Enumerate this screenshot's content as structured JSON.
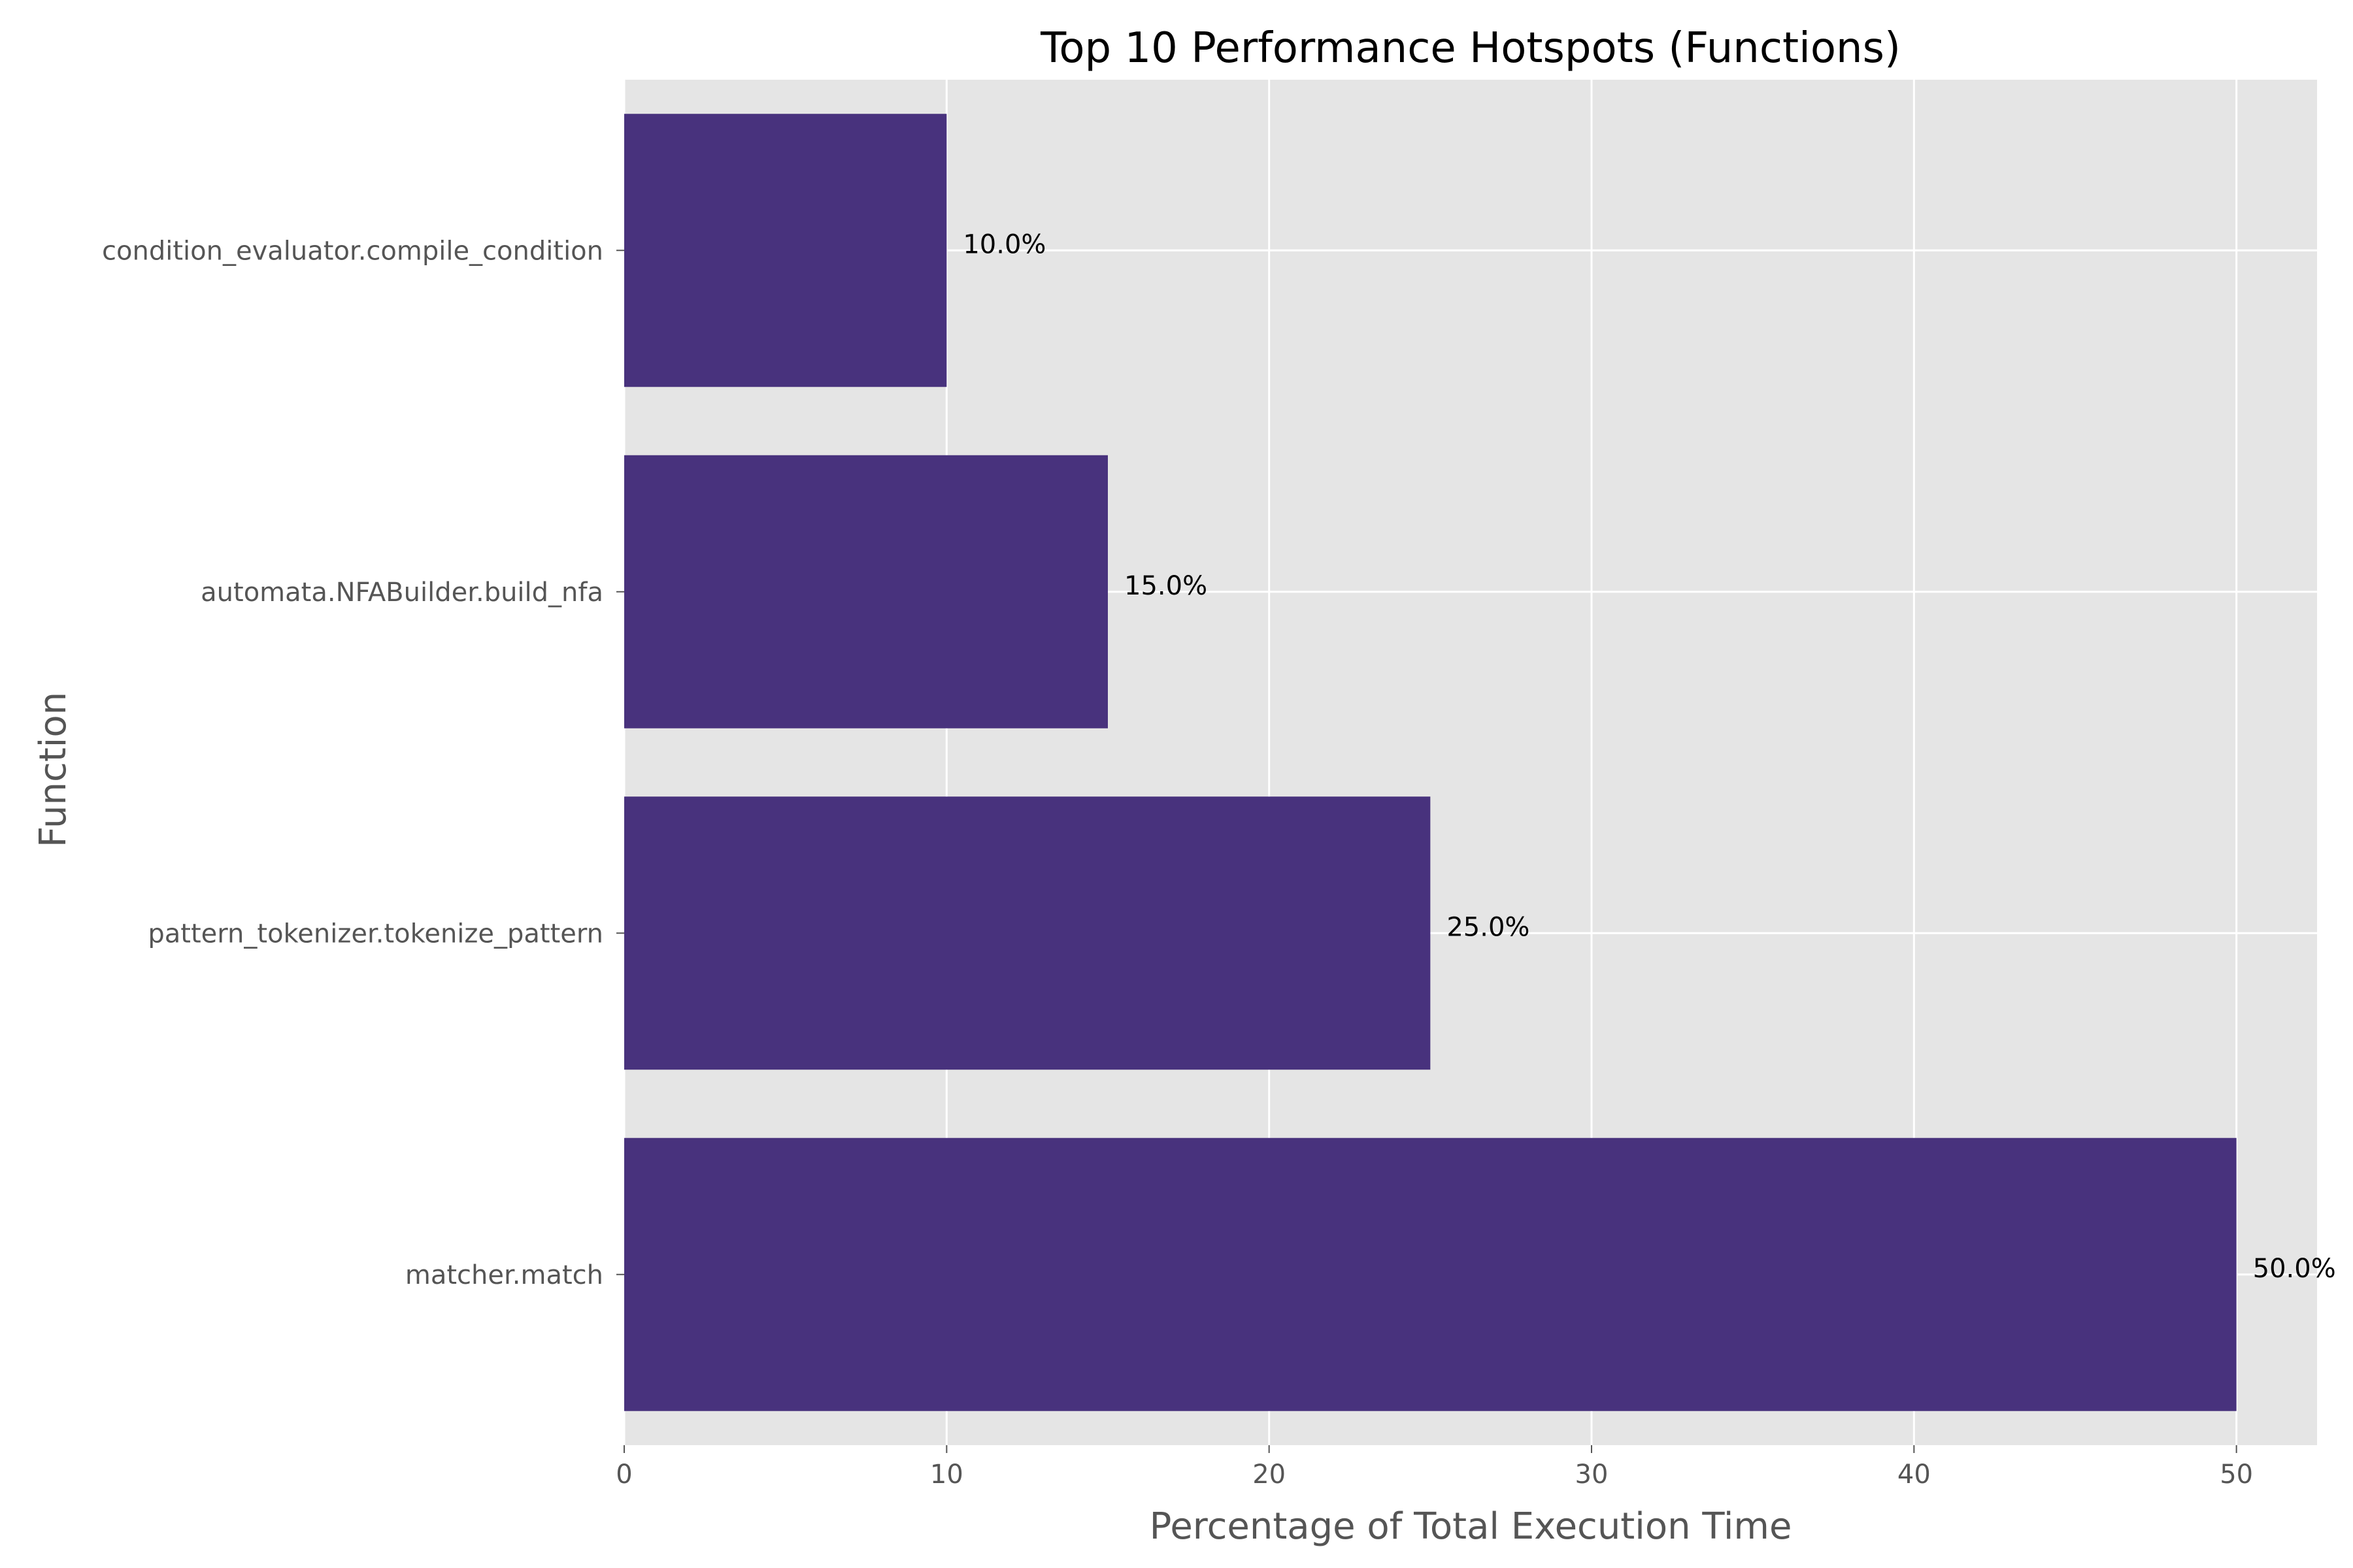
{
  "chart_data": {
    "type": "bar",
    "orientation": "horizontal",
    "title": "Top 10 Performance Hotspots (Functions)",
    "xlabel": "Percentage of Total Execution Time",
    "ylabel": "Function",
    "categories": [
      "matcher.match",
      "pattern_tokenizer.tokenize_pattern",
      "automata.NFABuilder.build_nfa",
      "condition_evaluator.compile_condition"
    ],
    "values": [
      50.0,
      25.0,
      15.0,
      10.0
    ],
    "value_labels": [
      "50.0%",
      "25.0%",
      "15.0%",
      "10.0%"
    ],
    "xlim": [
      0,
      52.5
    ],
    "xticks": [
      0,
      10,
      20,
      30,
      40,
      50
    ],
    "grid": true,
    "colors": {
      "bar": "#48327d",
      "plot_background": "#e5e5e5",
      "grid": "#ffffff"
    }
  }
}
